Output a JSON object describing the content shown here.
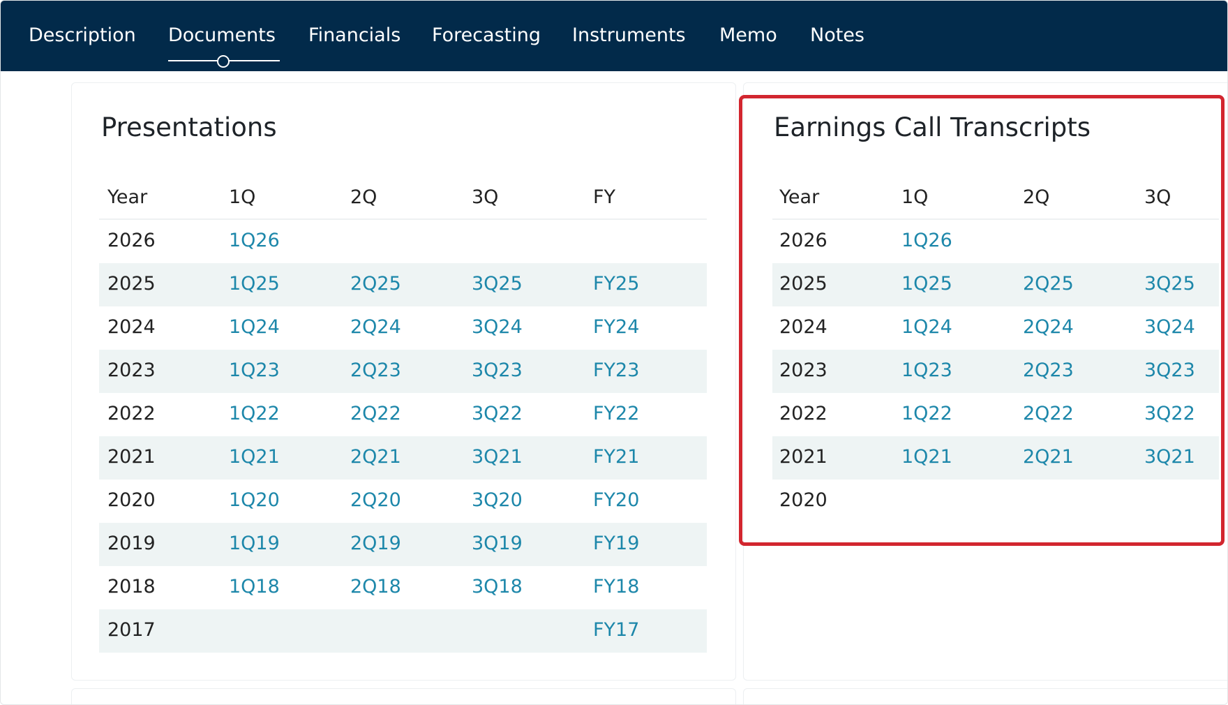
{
  "nav": {
    "tabs": [
      "Description",
      "Documents",
      "Financials",
      "Forecasting",
      "Instruments",
      "Memo",
      "Notes"
    ],
    "active": 1
  },
  "presentations": {
    "title": "Presentations",
    "headers": [
      "Year",
      "1Q",
      "2Q",
      "3Q",
      "FY"
    ],
    "rows": [
      [
        "2026",
        "1Q26",
        null,
        null,
        null
      ],
      [
        "2025",
        "1Q25",
        "2Q25",
        "3Q25",
        "FY25"
      ],
      [
        "2024",
        "1Q24",
        "2Q24",
        "3Q24",
        "FY24"
      ],
      [
        "2023",
        "1Q23",
        "2Q23",
        "3Q23",
        "FY23"
      ],
      [
        "2022",
        "1Q22",
        "2Q22",
        "3Q22",
        "FY22"
      ],
      [
        "2021",
        "1Q21",
        "2Q21",
        "3Q21",
        "FY21"
      ],
      [
        "2020",
        "1Q20",
        "2Q20",
        "3Q20",
        "FY20"
      ],
      [
        "2019",
        "1Q19",
        "2Q19",
        "3Q19",
        "FY19"
      ],
      [
        "2018",
        "1Q18",
        "2Q18",
        "3Q18",
        "FY18"
      ],
      [
        "2017",
        null,
        null,
        null,
        "FY17"
      ]
    ]
  },
  "transcripts": {
    "title": "Earnings Call Transcripts",
    "headers": [
      "Year",
      "1Q",
      "2Q",
      "3Q"
    ],
    "rows": [
      [
        "2026",
        "1Q26",
        null,
        null
      ],
      [
        "2025",
        "1Q25",
        "2Q25",
        "3Q25"
      ],
      [
        "2024",
        "1Q24",
        "2Q24",
        "3Q24"
      ],
      [
        "2023",
        "1Q23",
        "2Q23",
        "3Q23"
      ],
      [
        "2022",
        "1Q22",
        "2Q22",
        "3Q22"
      ],
      [
        "2021",
        "1Q21",
        "2Q21",
        "3Q21"
      ],
      [
        "2020",
        null,
        null,
        null
      ]
    ]
  }
}
